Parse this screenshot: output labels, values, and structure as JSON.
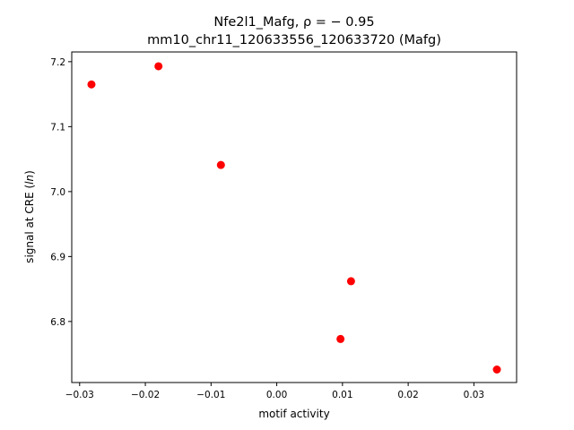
{
  "chart_data": {
    "type": "scatter",
    "title": "Nfe2l1_Mafg, ρ = − 0.95",
    "subtitle": "mm10_chr11_120633556_120633720 (Mafg)",
    "xlabel": "motif activity",
    "ylabel_prefix": "signal at CRE (",
    "ylabel_italic": "ln",
    "ylabel_suffix": ")",
    "xlim": [
      -0.0312,
      0.0365
    ],
    "ylim": [
      6.706,
      7.215
    ],
    "xticks": [
      -0.03,
      -0.02,
      -0.01,
      0.0,
      0.01,
      0.02,
      0.03
    ],
    "xtick_labels": [
      "−0.03",
      "−0.02",
      "−0.01",
      "0.00",
      "0.01",
      "0.02",
      "0.03"
    ],
    "yticks": [
      6.8,
      6.9,
      7.0,
      7.1,
      7.2
    ],
    "ytick_labels": [
      "6.8",
      "6.9",
      "7.0",
      "7.1",
      "7.2"
    ],
    "grid": false,
    "marker_color": "#ff0000",
    "points": [
      {
        "x": -0.0282,
        "y": 7.165
      },
      {
        "x": -0.018,
        "y": 7.193
      },
      {
        "x": -0.0085,
        "y": 7.041
      },
      {
        "x": 0.0113,
        "y": 6.862
      },
      {
        "x": 0.0097,
        "y": 6.773
      },
      {
        "x": 0.0335,
        "y": 6.726
      }
    ]
  }
}
